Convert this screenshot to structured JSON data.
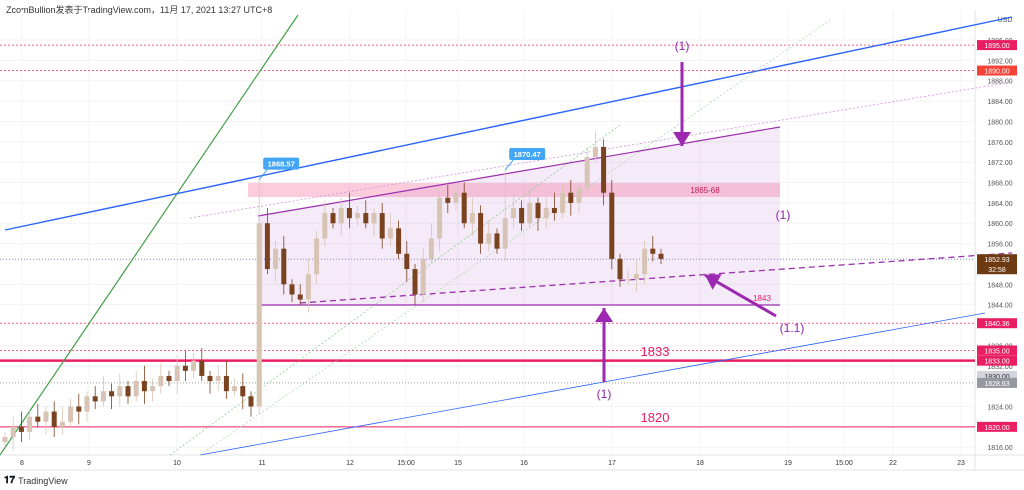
{
  "header": {
    "title": "ZcomBullion发表于TradingView.com，11月 17, 2021 13:27 UTC+8"
  },
  "footer": {
    "logo_text": "TradingView"
  },
  "colors": {
    "up": "#d7c4b4",
    "down": "#7a4320",
    "accent_purple": "#9b2fae",
    "level_red": "#e91e63",
    "trend_blue": "#2962ff",
    "trend_green": "#43a047"
  },
  "chart_data": {
    "type": "candlestick",
    "currency": "USD",
    "ylim": [
      1814,
      1898
    ],
    "y_ticks": [
      1896,
      1892,
      1888,
      1884,
      1880,
      1876,
      1872,
      1868,
      1864,
      1860,
      1856,
      1848,
      1844,
      1836,
      1832,
      1824,
      1816
    ],
    "x_ticks": [
      "8",
      "9",
      "10",
      "11",
      "12",
      "15:00",
      "15",
      "16",
      "17",
      "18",
      "19",
      "15:00",
      "22",
      "23"
    ],
    "closes": [
      1818,
      1820,
      1819,
      1822,
      1821,
      1823,
      1820,
      1821,
      1824,
      1823,
      1826,
      1825,
      1827,
      1826,
      1828,
      1826,
      1829,
      1827,
      1828,
      1830,
      1829,
      1832,
      1831,
      1833,
      1830,
      1829,
      1830,
      1827,
      1828,
      1826,
      1824,
      1860,
      1851,
      1855,
      1848,
      1846,
      1845,
      1850,
      1857,
      1862,
      1860,
      1863,
      1861,
      1862,
      1860,
      1862,
      1857,
      1859,
      1854,
      1851,
      1846,
      1853,
      1857,
      1865,
      1864,
      1866,
      1860,
      1862,
      1856,
      1858,
      1855,
      1861,
      1863,
      1860,
      1864,
      1861,
      1863,
      1862,
      1866,
      1864,
      1867,
      1873,
      1875,
      1866,
      1853,
      1849,
      1849,
      1850,
      1855,
      1854,
      1853
    ],
    "callouts": [
      {
        "text": "1868.57",
        "value": 1868.57
      },
      {
        "text": "1870.47",
        "value": 1870.47
      }
    ],
    "price_labels": [
      {
        "text": "1895.00",
        "value": 1895,
        "color": "#e91e63"
      },
      {
        "text": "1890.00",
        "value": 1890,
        "color": "#f44336"
      },
      {
        "text": "1852.93",
        "sub": "32:58",
        "value": 1852.93,
        "color": "#6d3a12"
      },
      {
        "text": "1840.36",
        "value": 1840.36,
        "color": "#e91e63"
      },
      {
        "text": "1835.00",
        "value": 1835,
        "color": "#e91e63"
      },
      {
        "text": "1833.00",
        "value": 1833,
        "color": "#e91e63"
      },
      {
        "text": "1830.00",
        "value": 1830,
        "color": "#d1d4dc"
      },
      {
        "text": "1828.63",
        "value": 1828.63,
        "color": "#9598a1"
      },
      {
        "text": "1820.00",
        "value": 1820,
        "color": "#e91e63"
      }
    ],
    "annotations": {
      "zone_label": "1865-68",
      "top_arrow": "(1)",
      "bottom_arrow": "(1)",
      "right_label": "(1)",
      "diag_arrow": "(1.1)",
      "support_1843": "1843",
      "level_1833": "1833",
      "level_1820": "1820"
    }
  }
}
